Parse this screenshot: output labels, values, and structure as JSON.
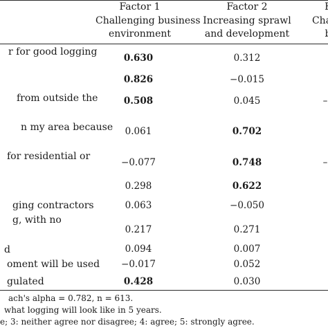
{
  "header": {
    "factor1": {
      "title": "Factor 1",
      "sub1": "Challenging business",
      "sub2": "environment"
    },
    "factor2": {
      "title": "Factor 2",
      "sub1": "Increasing sprawl",
      "sub2": "and development"
    },
    "factor3": {
      "title": "F",
      "sub1": "Chang",
      "sub2": "b"
    }
  },
  "rows": [
    {
      "label": "r for good logging",
      "v1": "0.630",
      "v2": "0.312",
      "v3": ""
    },
    {
      "label": "",
      "v1": "0.826",
      "v2": "−0.015",
      "v3": ""
    },
    {
      "label": "from outside the",
      "v1": "0.508",
      "v2": "0.045",
      "v3": "–"
    },
    {
      "label": "n my area because",
      "v1": "0.061",
      "v2": "0.702",
      "v3": ""
    },
    {
      "label": "for residential or",
      "v1": "−0.077",
      "v2": "0.748",
      "v3": "–"
    },
    {
      "label": "",
      "v1": "0.298",
      "v2": "0.622",
      "v3": ""
    },
    {
      "label": "ging contractors",
      "v1": "0.063",
      "v2": "−0.050",
      "v3": ""
    },
    {
      "label": "g, with no",
      "v1": "0.217",
      "v2": "0.271",
      "v3": ""
    },
    {
      "label": "d",
      "v1": "0.094",
      "v2": "0.007",
      "v3": ""
    },
    {
      "label": "oment will be used",
      "v1": "−0.017",
      "v2": "0.052",
      "v3": ""
    },
    {
      "label": "gulated",
      "v1": "0.428",
      "v2": "0.030",
      "v3": ""
    }
  ],
  "notes": [
    "ach's alpha = 0.782, n = 613.",
    "what logging will look like in 5 years.",
    "e; 3: neither agree nor disagree; 4: agree; 5: strongly agree."
  ]
}
